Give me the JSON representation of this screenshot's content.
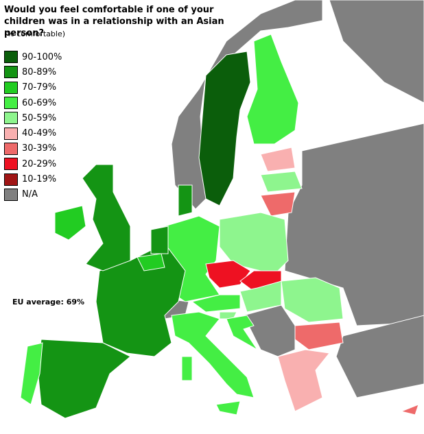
{
  "title": "Would you feel comfortable if one of your children was in a relationship with an Asian person?",
  "subtitle": "(% comfortable)",
  "legend": [
    {
      "label": "90-100%",
      "color": "#0b5e0b"
    },
    {
      "label": "80-89%",
      "color": "#149414"
    },
    {
      "label": "70-79%",
      "color": "#22cc22"
    },
    {
      "label": "60-69%",
      "color": "#44ee44"
    },
    {
      "label": "50-59%",
      "color": "#8ef58e"
    },
    {
      "label": "40-49%",
      "color": "#f9b0b0"
    },
    {
      "label": "30-39%",
      "color": "#ee6a6a"
    },
    {
      "label": "20-29%",
      "color": "#ee1122"
    },
    {
      "label": "10-19%",
      "color": "#a01515"
    },
    {
      "label": "N/A",
      "color": "#808080"
    }
  ],
  "note": "EU average: 69%"
}
